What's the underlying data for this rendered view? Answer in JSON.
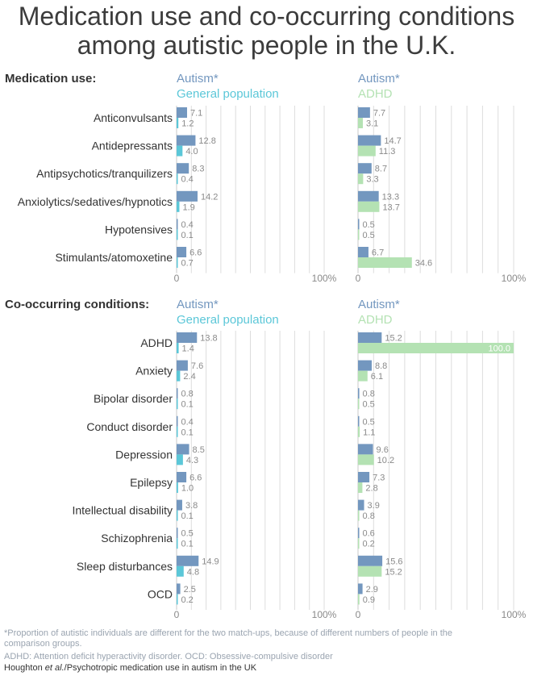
{
  "title": "Medication use and co-occurring conditions among autistic people in the U.K.",
  "colors": {
    "autism": "#7397bf",
    "general": "#5bc7d8",
    "adhd": "#b4e2b3",
    "grid": "#dddddd",
    "text": "#333333",
    "muted": "#8a8a8a"
  },
  "footnotes": {
    "note1": "*Proportion of autistic individuals are different for the two match-ups, because of different numbers of people in the comparison groups.",
    "note2": "ADHD: Attention deficit hyperactivity disorder. OCD: Obsessive-compulsive disorder",
    "credit_authors": "Houghton",
    "credit_etal": "et al.",
    "credit_rest": "/Psychotropic medication use in autism in the UK"
  },
  "chart_data": [
    {
      "type": "bar",
      "section_title": "Medication use:",
      "panel": "left",
      "categories": [
        "Anticonvulsants",
        "Antidepressants",
        "Antipsychotics/tranquilizers",
        "Anxiolytics/sedatives/hypnotics",
        "Hypotensives",
        "Stimulants/atomoxetine"
      ],
      "series": [
        {
          "name": "Autism*",
          "color": "#7397bf",
          "values": [
            7.1,
            12.8,
            8.3,
            14.2,
            0.4,
            6.6
          ]
        },
        {
          "name": "General population",
          "color": "#5bc7d8",
          "values": [
            1.2,
            4.0,
            0.4,
            1.9,
            0.1,
            0.7
          ]
        }
      ],
      "value_labels": [
        [
          "7.1",
          "12.8",
          "8.3",
          "14.2",
          "0.4",
          "6.6"
        ],
        [
          "1.2",
          "4.0",
          "0.4",
          "1.9",
          "0.1",
          "0.7"
        ]
      ],
      "xlim": [
        0,
        100
      ],
      "xtick_labels": [
        "0",
        "100%"
      ]
    },
    {
      "type": "bar",
      "panel": "right",
      "categories": [
        "Anticonvulsants",
        "Antidepressants",
        "Antipsychotics/tranquilizers",
        "Anxiolytics/sedatives/hypnotics",
        "Hypotensives",
        "Stimulants/atomoxetine"
      ],
      "series": [
        {
          "name": "Autism*",
          "color": "#7397bf",
          "values": [
            7.7,
            14.7,
            8.7,
            13.3,
            0.5,
            6.7
          ]
        },
        {
          "name": "ADHD",
          "color": "#b4e2b3",
          "values": [
            3.1,
            11.3,
            3.3,
            13.7,
            0.5,
            34.6
          ]
        }
      ],
      "value_labels": [
        [
          "7.7",
          "14.7",
          "8.7",
          "13.3",
          "0.5",
          "6.7"
        ],
        [
          "3.1",
          "11.3",
          "3.3",
          "13.7",
          "0.5",
          "34.6"
        ]
      ],
      "xlim": [
        0,
        100
      ],
      "xtick_labels": [
        "0",
        "100%"
      ]
    },
    {
      "type": "bar",
      "section_title": "Co-occurring conditions:",
      "panel": "left",
      "categories": [
        "ADHD",
        "Anxiety",
        "Bipolar disorder",
        "Conduct disorder",
        "Depression",
        "Epilepsy",
        "Intellectual disability",
        "Schizophrenia",
        "Sleep disturbances",
        "OCD"
      ],
      "series": [
        {
          "name": "Autism*",
          "color": "#7397bf",
          "values": [
            13.8,
            7.6,
            0.8,
            0.4,
            8.5,
            6.6,
            3.8,
            0.5,
            14.9,
            2.5
          ]
        },
        {
          "name": "General population",
          "color": "#5bc7d8",
          "values": [
            1.4,
            2.4,
            0.1,
            0.1,
            4.3,
            1.0,
            0.1,
            0.1,
            4.8,
            0.2
          ]
        }
      ],
      "value_labels": [
        [
          "13.8",
          "7.6",
          "0.8",
          "0.4",
          "8.5",
          "6.6",
          "3.8",
          "0.5",
          "14.9",
          "2.5"
        ],
        [
          "1.4",
          "2.4",
          "0.1",
          "0.1",
          "4.3",
          "1.0",
          "0.1",
          "0.1",
          "4.8",
          "0.2"
        ]
      ],
      "xlim": [
        0,
        100
      ],
      "xtick_labels": [
        "0",
        "100%"
      ]
    },
    {
      "type": "bar",
      "panel": "right",
      "categories": [
        "ADHD",
        "Anxiety",
        "Bipolar disorder",
        "Conduct disorder",
        "Depression",
        "Epilepsy",
        "Intellectual disability",
        "Schizophrenia",
        "Sleep disturbances",
        "OCD"
      ],
      "series": [
        {
          "name": "Autism*",
          "color": "#7397bf",
          "values": [
            15.2,
            8.8,
            0.8,
            0.5,
            9.6,
            7.3,
            3.9,
            0.6,
            15.6,
            2.9
          ]
        },
        {
          "name": "ADHD",
          "color": "#b4e2b3",
          "values": [
            100.0,
            6.1,
            0.5,
            1.1,
            10.2,
            2.8,
            0.8,
            0.2,
            15.2,
            0.9
          ]
        }
      ],
      "value_labels": [
        [
          "15.2",
          "8.8",
          "0.8",
          "0.5",
          "9.6",
          "7.3",
          "3.9",
          "0.6",
          "15.6",
          "2.9"
        ],
        [
          "100.0",
          "6.1",
          "0.5",
          "1.1",
          "10.2",
          "2.8",
          "0.8",
          "0.2",
          "15.2",
          "0.9"
        ]
      ],
      "xlim": [
        0,
        100
      ],
      "xtick_labels": [
        "0",
        "100%"
      ]
    }
  ]
}
